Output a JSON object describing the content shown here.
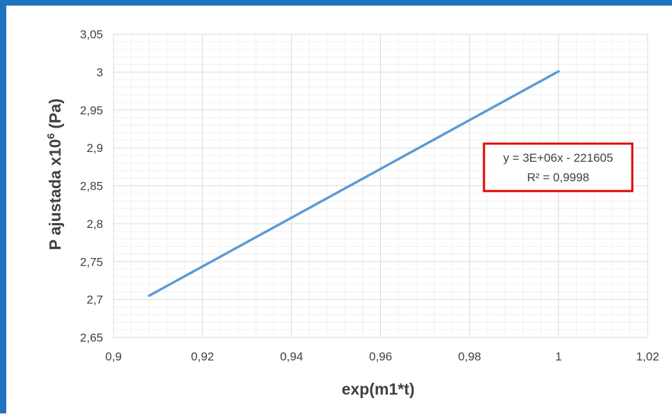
{
  "chart_data": {
    "type": "line",
    "xlabel": "exp(m1*t)",
    "ylabel": {
      "prefix": "P ajustada x10",
      "superscript": "6",
      "suffix": " (Pa)"
    },
    "xlim": [
      0.9,
      1.02
    ],
    "ylim": [
      2.65,
      3.05
    ],
    "x_ticks": [
      "0,9",
      "0,92",
      "0,94",
      "0,96",
      "0,98",
      "1",
      "1,02"
    ],
    "y_ticks": [
      "2,65",
      "2,7",
      "2,75",
      "2,8",
      "2,85",
      "2,9",
      "2,95",
      "3",
      "3,05"
    ],
    "grid": true,
    "minor_grid": true,
    "series": [
      {
        "x": [
          0.908,
          1.0
        ],
        "y": [
          2.705,
          3.001
        ]
      }
    ],
    "trendline": {
      "equation": "y = 3E+06x - 221605",
      "r_squared": "R² = 0,9998"
    },
    "colors": {
      "line": "#5b9bd5",
      "annotation_border": "#e00000",
      "frame": "#1f73c1",
      "major_grid": "#d9d9d9",
      "minor_grid": "#f0f0f0"
    }
  }
}
